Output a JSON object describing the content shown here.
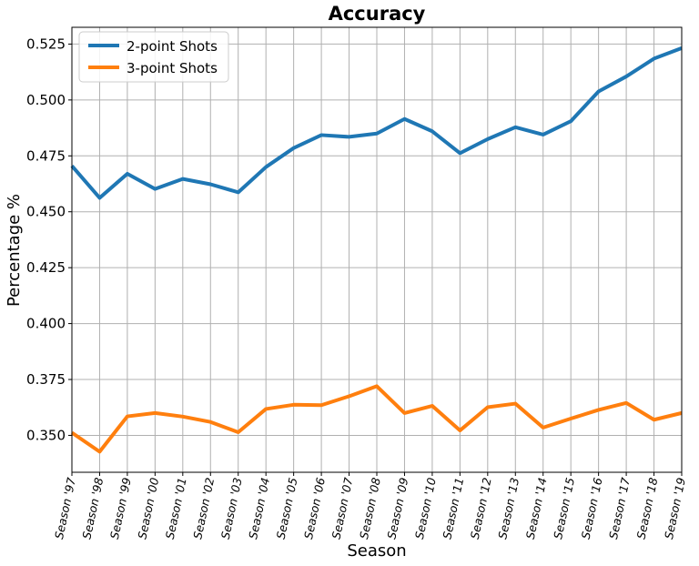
{
  "chart_data": {
    "type": "line",
    "title": "Accuracy",
    "xlabel": "Season",
    "ylabel": "Percentage %",
    "categories": [
      "Season '97",
      "Season '98",
      "Season '99",
      "Season '00",
      "Season '01",
      "Season '02",
      "Season '03",
      "Season '04",
      "Season '05",
      "Season '06",
      "Season '07",
      "Season '08",
      "Season '09",
      "Season '10",
      "Season '11",
      "Season '12",
      "Season '13",
      "Season '14",
      "Season '15",
      "Season '16",
      "Season '17",
      "Season '18",
      "Season '19"
    ],
    "series": [
      {
        "name": "2-point Shots",
        "color": "#1f77b4",
        "values": [
          0.4705,
          0.4562,
          0.467,
          0.4602,
          0.4647,
          0.4623,
          0.4587,
          0.47,
          0.4785,
          0.4843,
          0.4835,
          0.485,
          0.4915,
          0.486,
          0.4762,
          0.4825,
          0.4878,
          0.4845,
          0.4905,
          0.5038,
          0.5105,
          0.5185,
          0.5232
        ]
      },
      {
        "name": "3-point Shots",
        "color": "#ff7f0e",
        "values": [
          0.3512,
          0.3427,
          0.3585,
          0.36,
          0.3584,
          0.356,
          0.3514,
          0.3618,
          0.3637,
          0.3635,
          0.3675,
          0.372,
          0.36,
          0.3632,
          0.3522,
          0.3626,
          0.3642,
          0.3535,
          0.3575,
          0.3614,
          0.3645,
          0.357,
          0.36
        ]
      }
    ],
    "yticks": [
      "0.350",
      "0.375",
      "0.400",
      "0.425",
      "0.450",
      "0.475",
      "0.500",
      "0.525"
    ],
    "ylim": [
      0.3335,
      0.5325
    ],
    "grid": true,
    "legend_position": "top-left"
  }
}
